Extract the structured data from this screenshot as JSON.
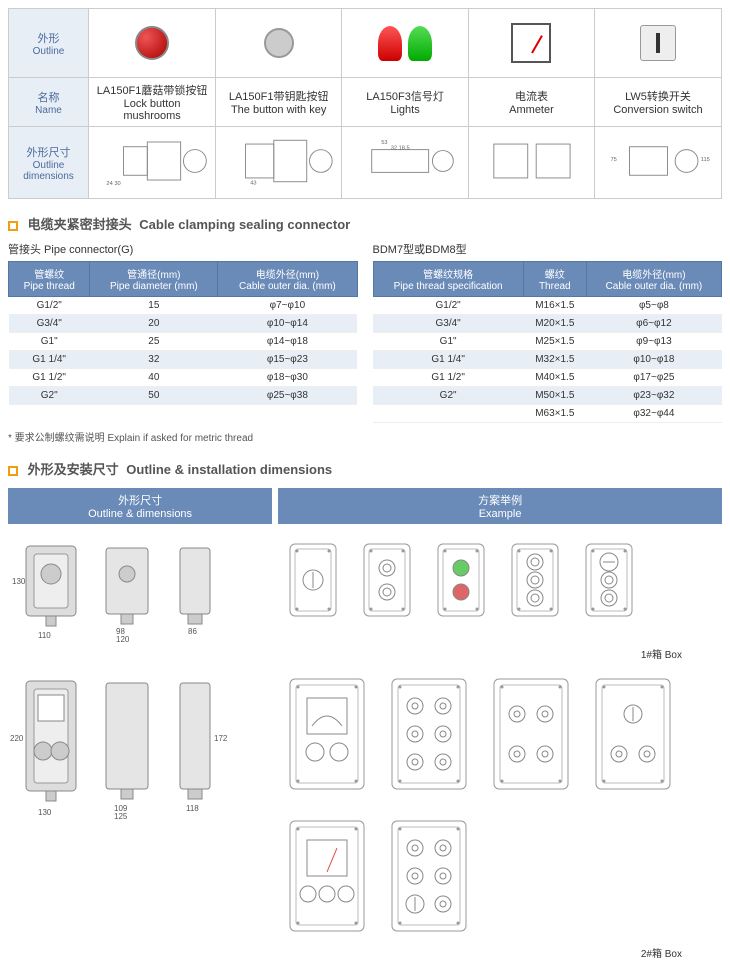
{
  "row_headers": {
    "outline_cn": "外形",
    "outline_en": "Outline",
    "name_cn": "名称",
    "name_en": "Name",
    "dims_cn": "外形尺寸",
    "dims_en": "Outline dimensions"
  },
  "products": [
    {
      "cn": "LA150F1蘑菇带锁按钮",
      "en": "Lock button mushrooms"
    },
    {
      "cn": "LA150F1带钥匙按钮",
      "en": "The button with key"
    },
    {
      "cn": "LA150F3信号灯",
      "en": "Lights"
    },
    {
      "cn": "电流表",
      "en": "Ammeter"
    },
    {
      "cn": "LW5转换开关",
      "en": "Conversion switch"
    }
  ],
  "sec1": {
    "cn": "电缆夹紧密封接头",
    "en": "Cable clamping sealing connector",
    "pipe_label": "管接头 Pipe connector(G)",
    "bdm_label": "BDM7型或BDM8型",
    "note": "* 要求公制螺纹需说明  Explain if asked for metric thread"
  },
  "table_g": {
    "headers": [
      {
        "cn": "管螺纹",
        "en": "Pipe thread"
      },
      {
        "cn": "管通径(mm)",
        "en": "Pipe diameter (mm)"
      },
      {
        "cn": "电缆外径(mm)",
        "en": "Cable outer dia. (mm)"
      }
    ],
    "rows": [
      [
        "G1/2\"",
        "15",
        "φ7~φ10"
      ],
      [
        "G3/4\"",
        "20",
        "φ10~φ14"
      ],
      [
        "G1\"",
        "25",
        "φ14~φ18"
      ],
      [
        "G1 1/4\"",
        "32",
        "φ15~φ23"
      ],
      [
        "G1 1/2\"",
        "40",
        "φ18~φ30"
      ],
      [
        "G2\"",
        "50",
        "φ25~φ38"
      ]
    ]
  },
  "table_bdm": {
    "headers": [
      {
        "cn": "管螺纹规格",
        "en": "Pipe thread specification"
      },
      {
        "cn": "螺纹",
        "en": "Thread"
      },
      {
        "cn": "电缆外径(mm)",
        "en": "Cable outer dia. (mm)"
      }
    ],
    "rows": [
      [
        "G1/2\"",
        "M16×1.5",
        "φ5~φ8"
      ],
      [
        "G3/4\"",
        "M20×1.5",
        "φ6~φ12"
      ],
      [
        "G1\"",
        "M25×1.5",
        "φ9~φ13"
      ],
      [
        "G1 1/4\"",
        "M32×1.5",
        "φ10~φ18"
      ],
      [
        "G1 1/2\"",
        "M40×1.5",
        "φ17~φ25"
      ],
      [
        "G2\"",
        "M50×1.5",
        "φ23~φ32"
      ],
      [
        "",
        "M63×1.5",
        "φ32~φ44"
      ]
    ]
  },
  "sec2": {
    "cn": "外形及安装尺寸",
    "en": "Outline & installation dimensions",
    "header_left_cn": "外形尺寸",
    "header_left_en": "Outline & dimensions",
    "header_right_cn": "方案举例",
    "header_right_en": "Example"
  },
  "box1": {
    "label": "1#箱 Box",
    "w": "110",
    "h": "130",
    "w2": "98",
    "w3": "120",
    "d": "86"
  },
  "box2": {
    "label": "2#箱 Box",
    "w": "130",
    "h": "220",
    "w2": "109",
    "w3": "125",
    "d": "118",
    "h2": "172"
  },
  "colors": {
    "header_bg": "#6a8ab8",
    "accent": "#f39c12",
    "row_even": "#e8eef5",
    "side_bg": "#e8eef5",
    "text_blue": "#4a6a9e"
  }
}
